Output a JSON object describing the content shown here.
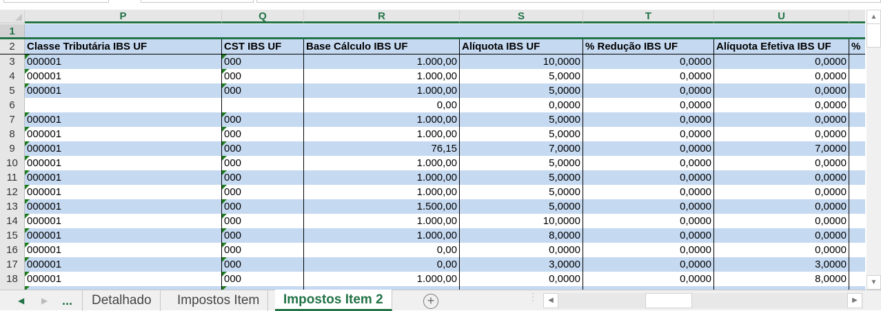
{
  "columns": [
    "P",
    "Q",
    "R",
    "S",
    "T",
    "U",
    ""
  ],
  "headers": [
    "Classe Tributária IBS UF",
    "CST IBS UF",
    "Base Cálculo IBS UF",
    "Alíquota IBS UF",
    "% Redução IBS UF",
    "Alíquota Efetiva IBS UF",
    "%"
  ],
  "row_numbers": [
    "1",
    "2"
  ],
  "rows": [
    {
      "n": "3",
      "p": "000001",
      "q": "000",
      "r": "1.000,00",
      "s": "10,0000",
      "t": "0,0000",
      "u": "0,0000"
    },
    {
      "n": "4",
      "p": "000001",
      "q": "000",
      "r": "1.000,00",
      "s": "5,0000",
      "t": "0,0000",
      "u": "0,0000"
    },
    {
      "n": "5",
      "p": "000001",
      "q": "000",
      "r": "1.000,00",
      "s": "5,0000",
      "t": "0,0000",
      "u": "0,0000"
    },
    {
      "n": "6",
      "p": "",
      "q": "",
      "r": "0,00",
      "s": "0,0000",
      "t": "0,0000",
      "u": "0,0000"
    },
    {
      "n": "7",
      "p": "000001",
      "q": "000",
      "r": "1.000,00",
      "s": "5,0000",
      "t": "0,0000",
      "u": "0,0000"
    },
    {
      "n": "8",
      "p": "000001",
      "q": "000",
      "r": "1.000,00",
      "s": "5,0000",
      "t": "0,0000",
      "u": "0,0000"
    },
    {
      "n": "9",
      "p": "000001",
      "q": "000",
      "r": "76,15",
      "s": "7,0000",
      "t": "0,0000",
      "u": "7,0000"
    },
    {
      "n": "10",
      "p": "000001",
      "q": "000",
      "r": "1.000,00",
      "s": "5,0000",
      "t": "0,0000",
      "u": "0,0000"
    },
    {
      "n": "11",
      "p": "000001",
      "q": "000",
      "r": "1.000,00",
      "s": "5,0000",
      "t": "0,0000",
      "u": "0,0000"
    },
    {
      "n": "12",
      "p": "000001",
      "q": "000",
      "r": "1.000,00",
      "s": "5,0000",
      "t": "0,0000",
      "u": "0,0000"
    },
    {
      "n": "13",
      "p": "000001",
      "q": "000",
      "r": "1.500,00",
      "s": "5,0000",
      "t": "0,0000",
      "u": "0,0000"
    },
    {
      "n": "14",
      "p": "000001",
      "q": "000",
      "r": "1.000,00",
      "s": "10,0000",
      "t": "0,0000",
      "u": "0,0000"
    },
    {
      "n": "15",
      "p": "000001",
      "q": "000",
      "r": "1.000,00",
      "s": "8,0000",
      "t": "0,0000",
      "u": "0,0000"
    },
    {
      "n": "16",
      "p": "000001",
      "q": "000",
      "r": "0,00",
      "s": "0,0000",
      "t": "0,0000",
      "u": "0,0000"
    },
    {
      "n": "17",
      "p": "000001",
      "q": "000",
      "r": "0,00",
      "s": "3,0000",
      "t": "0,0000",
      "u": "3,0000"
    },
    {
      "n": "18",
      "p": "000001",
      "q": "000",
      "r": "1.000,00",
      "s": "0,0000",
      "t": "0,0000",
      "u": "8,0000"
    },
    {
      "n": "",
      "p": "",
      "q": "",
      "r": "",
      "s": "",
      "t": "",
      "u": ""
    }
  ],
  "tabs": {
    "more": "...",
    "items": [
      "Detalhado",
      "Impostos Item",
      "Impostos Item 2"
    ],
    "active": "Impostos Item 2"
  },
  "colors": {
    "accent": "#217346",
    "row_band": "#c5d9f1"
  }
}
